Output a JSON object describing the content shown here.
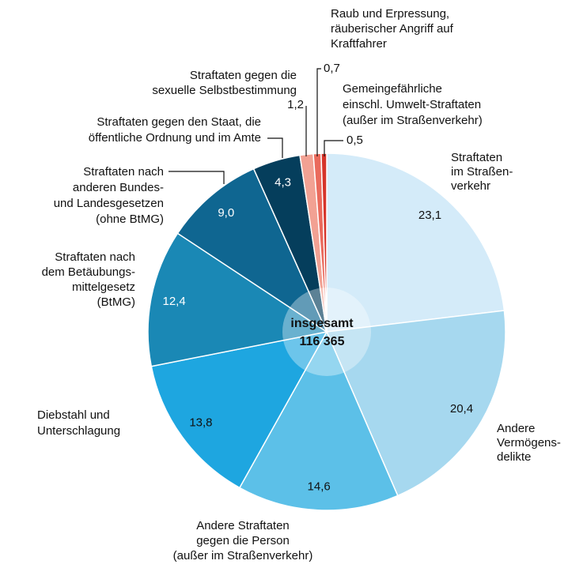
{
  "chart_data": {
    "type": "pie",
    "categories": [
      [
        "Straftaten",
        "im Straßen-",
        "verkehr"
      ],
      [
        "Andere",
        "Vermögens-",
        "delikte"
      ],
      [
        "Andere Straftaten",
        "gegen die Person",
        "(außer im Straßenverkehr)"
      ],
      [
        "Diebstahl und",
        "Unterschlagung"
      ],
      [
        "Straftaten nach",
        "dem Betäubungs-",
        "mittelgesetz",
        "(BtMG)"
      ],
      [
        "Straftaten nach",
        "anderen Bundes-",
        "und Landesgesetzen",
        "(ohne BtMG)"
      ],
      [
        "Straftaten gegen den Staat, die",
        "öffentliche Ordnung und im Amte"
      ],
      [
        "Straftaten gegen die",
        "sexuelle Selbstbestimmung"
      ],
      [
        "Raub und Erpressung,",
        "räuberischer Angriff auf",
        "Kraftfahrer"
      ],
      [
        "Gemeingefährliche",
        "einschl. Umwelt-Straftaten",
        "(außer im Straßenverkehr)"
      ]
    ],
    "values": [
      23.1,
      20.4,
      14.6,
      13.8,
      12.4,
      9.0,
      4.3,
      1.2,
      0.7,
      0.5
    ],
    "value_labels": [
      "23,1",
      "20,4",
      "14,6",
      "13,8",
      "12,4",
      "9,0",
      "4,3",
      "1,2",
      "0,7",
      "0,5"
    ],
    "colors": [
      "#d4ebf9",
      "#a6d8ef",
      "#5cc0e8",
      "#1ea6e0",
      "#1a88b5",
      "#0f6691",
      "#053e5c",
      "#f2a193",
      "#ea6a5c",
      "#d6342a"
    ],
    "center": [
      "insgesamt",
      "116 365"
    ]
  }
}
